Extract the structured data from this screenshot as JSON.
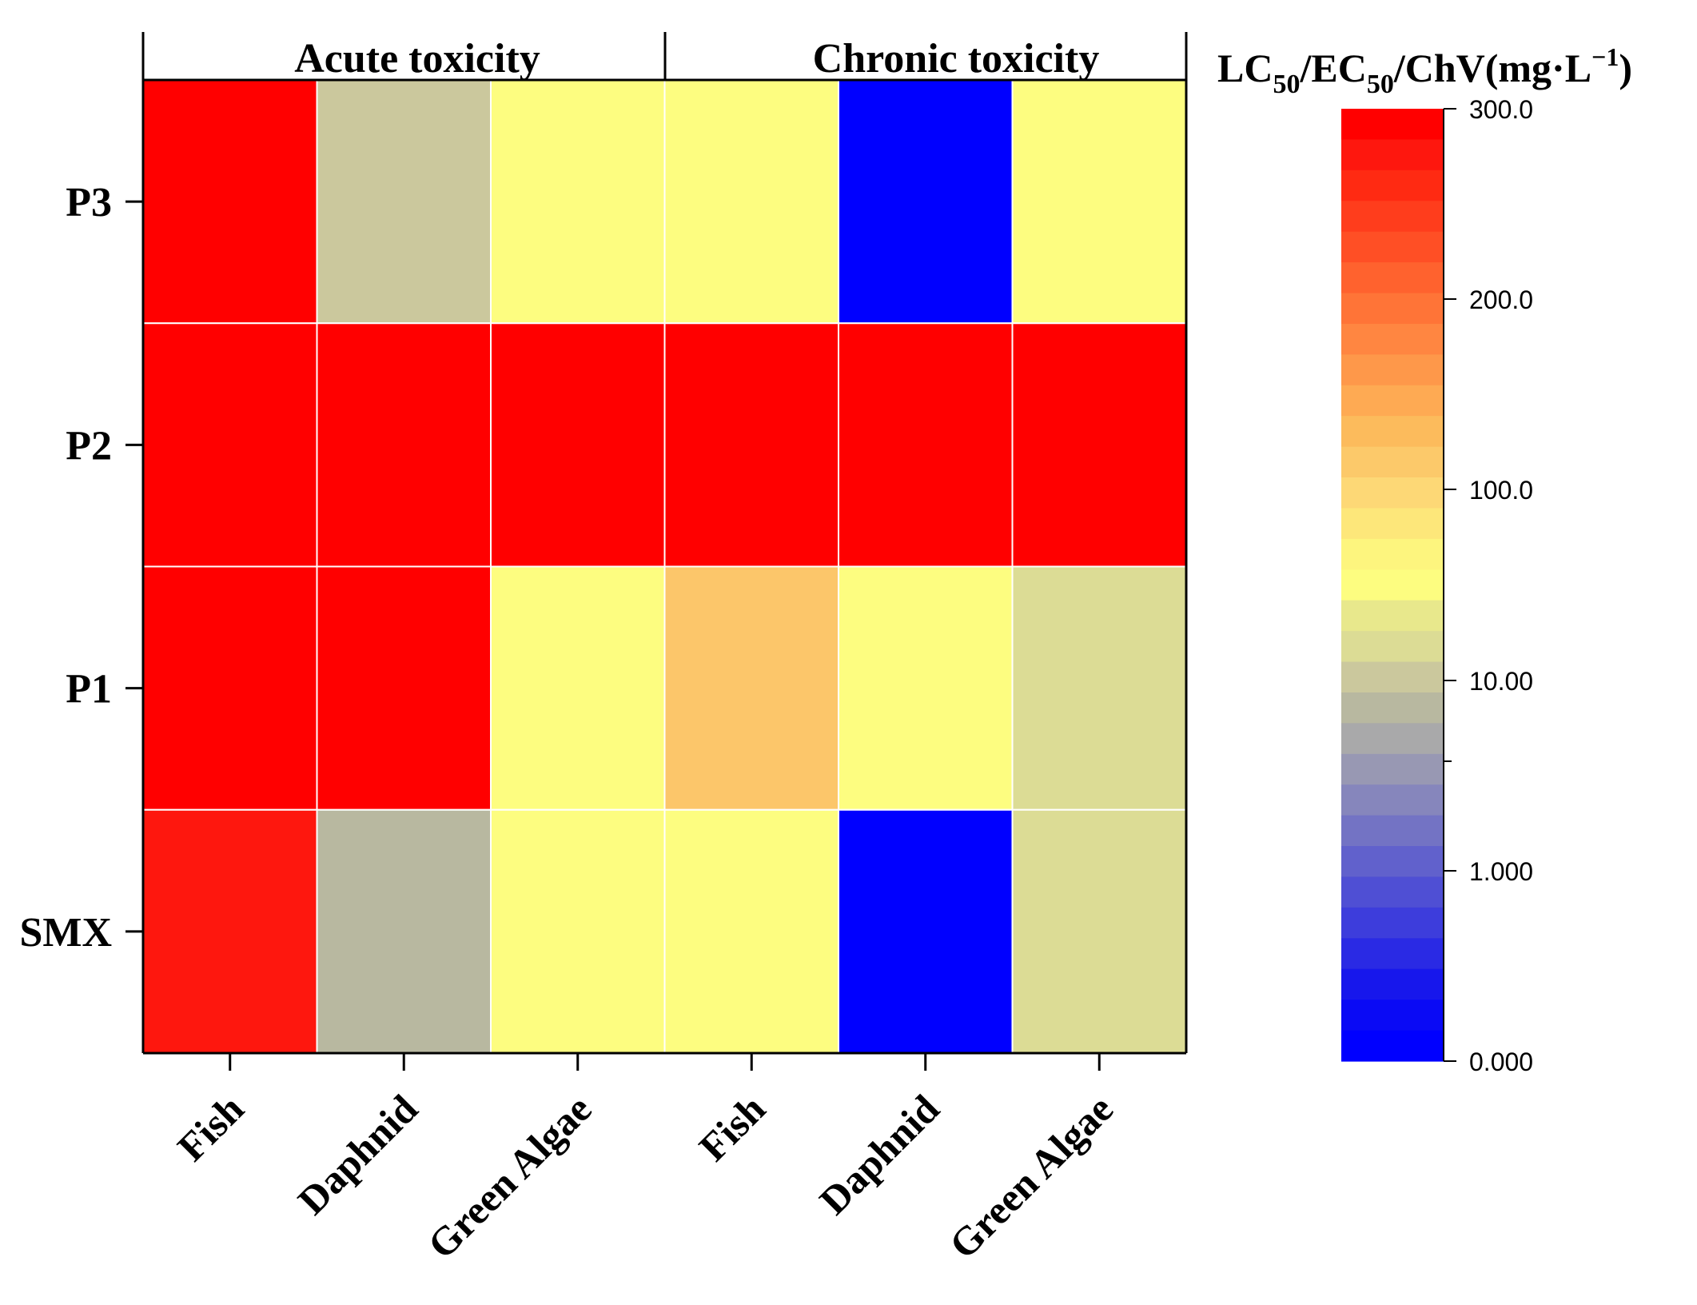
{
  "chart_data": {
    "type": "heatmap",
    "title": "",
    "groups": [
      {
        "label": "Acute toxicity",
        "columns": [
          0,
          1,
          2
        ]
      },
      {
        "label": "Chronic toxicity",
        "columns": [
          3,
          4,
          5
        ]
      }
    ],
    "columns": [
      "Fish",
      "Daphnid",
      "Green Algae",
      "Fish",
      "Daphnid",
      "Green Algae"
    ],
    "rows": [
      "P3",
      "P2",
      "P1",
      "SMX"
    ],
    "cells": [
      {
        "row": "P3",
        "values": [
          300,
          8,
          40,
          40,
          0.02,
          40
        ],
        "colors": [
          "#ff0000",
          "#cbc89d",
          "#fdfd80",
          "#fdfd80",
          "#0000ff",
          "#fdfd80"
        ]
      },
      {
        "row": "P2",
        "values": [
          300,
          300,
          300,
          300,
          300,
          300
        ],
        "colors": [
          "#ff0000",
          "#ff0000",
          "#ff0000",
          "#ff0000",
          "#ff0000",
          "#ff0000"
        ]
      },
      {
        "row": "P1",
        "values": [
          300,
          300,
          40,
          120,
          40,
          14
        ],
        "colors": [
          "#ff0000",
          "#ff0000",
          "#fdfd80",
          "#fcc66a",
          "#fdfd80",
          "#dcdc95"
        ]
      },
      {
        "row": "SMX",
        "values": [
          280,
          6,
          40,
          40,
          0.02,
          14
        ],
        "colors": [
          "#fe170e",
          "#b8b8a0",
          "#fdfd80",
          "#fdfd80",
          "#0000ff",
          "#dcdc95"
        ]
      }
    ],
    "colorbar": {
      "label_main": "LC",
      "label_sub1": "50",
      "label_mid1": "/EC",
      "label_sub2": "50",
      "label_mid2": "/ChV(mg·L",
      "label_sup": "−1",
      "label_end": ")",
      "ticks": [
        "300.0",
        "200.0",
        "100.0",
        "10.00",
        "1.000",
        "0.000"
      ],
      "tick_values": [
        300,
        200,
        100,
        10,
        1,
        0
      ],
      "stops": [
        "#ff0000",
        "#fe170e",
        "#ff2a12",
        "#ff3d1c",
        "#ff4f25",
        "#ff622e",
        "#ff7437",
        "#ff8641",
        "#fe984a",
        "#feaa53",
        "#fcbb5c",
        "#fcc96a",
        "#fdd876",
        "#fde77a",
        "#fdf57e",
        "#fdfd80",
        "#e8e88c",
        "#dcdc95",
        "#cbc89d",
        "#b8b8a0",
        "#a9a9aa",
        "#9898b3",
        "#8686bc",
        "#7373c4",
        "#6161cc",
        "#4f4fd4",
        "#3d3ddc",
        "#2a2ae4",
        "#1717ec",
        "#0a0af5",
        "#0000ff"
      ]
    },
    "xlabel": "",
    "ylabel": ""
  }
}
